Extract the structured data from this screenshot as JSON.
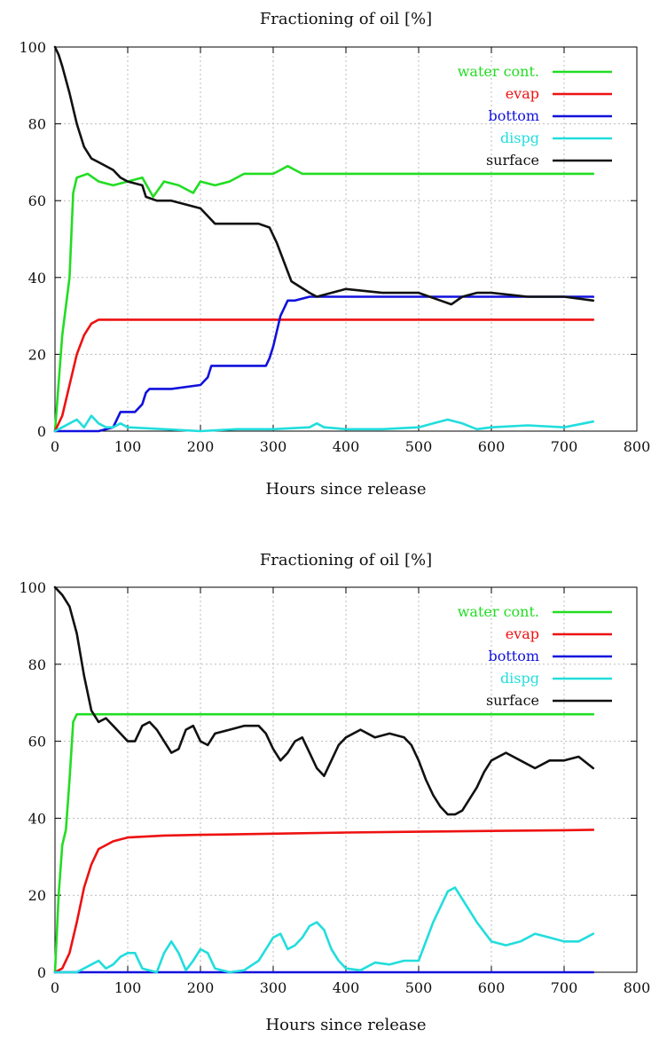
{
  "chart_data": [
    {
      "type": "line",
      "title": "Fractioning of oil [%]",
      "xlabel": "Hours since release",
      "ylabel": "",
      "xlim": [
        0,
        800
      ],
      "ylim": [
        0,
        100
      ],
      "xticks": [
        "0",
        "100",
        "200",
        "300",
        "400",
        "500",
        "600",
        "700",
        "800"
      ],
      "yticks": [
        "0",
        "20",
        "40",
        "60",
        "80",
        "100"
      ],
      "grid": true,
      "legend_position": "top-right",
      "series": [
        {
          "name": "water cont.",
          "color": "#22dd22",
          "x": [
            0,
            10,
            20,
            25,
            30,
            45,
            60,
            80,
            100,
            120,
            135,
            150,
            170,
            190,
            200,
            220,
            240,
            260,
            300,
            310,
            320,
            330,
            340,
            400,
            500,
            600,
            700,
            740
          ],
          "y": [
            0,
            25,
            40,
            62,
            66,
            67,
            65,
            64,
            65,
            66,
            61,
            65,
            64,
            62,
            65,
            64,
            65,
            67,
            67,
            68,
            69,
            68,
            67,
            67,
            67,
            67,
            67,
            67
          ]
        },
        {
          "name": "evap",
          "color": "#ee1111",
          "x": [
            0,
            10,
            20,
            30,
            40,
            50,
            60,
            100,
            200,
            300,
            400,
            500,
            600,
            700,
            740
          ],
          "y": [
            0,
            4,
            12,
            20,
            25,
            28,
            29,
            29,
            29,
            29,
            29,
            29,
            29,
            29,
            29
          ]
        },
        {
          "name": "bottom",
          "color": "#1111dd",
          "x": [
            0,
            60,
            80,
            90,
            100,
            110,
            120,
            125,
            130,
            160,
            200,
            210,
            215,
            250,
            290,
            295,
            300,
            310,
            320,
            330,
            350,
            400,
            500,
            600,
            700,
            740
          ],
          "y": [
            0,
            0,
            1,
            5,
            5,
            5,
            7,
            10,
            11,
            11,
            12,
            14,
            17,
            17,
            17,
            19,
            22,
            30,
            34,
            34,
            35,
            35,
            35,
            35,
            35,
            35
          ]
        },
        {
          "name": "dispg",
          "color": "#22dddd",
          "x": [
            0,
            10,
            20,
            30,
            40,
            50,
            60,
            70,
            80,
            90,
            100,
            150,
            200,
            250,
            300,
            350,
            360,
            370,
            400,
            450,
            500,
            520,
            540,
            560,
            580,
            600,
            650,
            700,
            740
          ],
          "y": [
            0,
            1,
            2,
            3,
            1,
            4,
            2,
            1,
            1,
            2,
            1,
            0.5,
            0,
            0.5,
            0.5,
            1,
            2,
            1,
            0.5,
            0.5,
            1,
            2,
            3,
            2,
            0.5,
            1,
            1.5,
            1,
            2.5
          ]
        },
        {
          "name": "surface",
          "color": "#111111",
          "x": [
            0,
            5,
            10,
            20,
            30,
            40,
            50,
            60,
            80,
            90,
            100,
            120,
            125,
            140,
            160,
            200,
            210,
            220,
            280,
            295,
            305,
            315,
            325,
            350,
            360,
            380,
            400,
            450,
            480,
            500,
            530,
            545,
            560,
            580,
            600,
            650,
            700,
            740
          ],
          "y": [
            100,
            98,
            95,
            88,
            80,
            74,
            71,
            70,
            68,
            66,
            65,
            64,
            61,
            60,
            60,
            58,
            56,
            54,
            54,
            53,
            49,
            44,
            39,
            36,
            35,
            36,
            37,
            36,
            36,
            36,
            34,
            33,
            35,
            36,
            36,
            35,
            35,
            34
          ]
        }
      ]
    },
    {
      "type": "line",
      "title": "Fractioning of oil [%]",
      "xlabel": "Hours since release",
      "ylabel": "",
      "xlim": [
        0,
        800
      ],
      "ylim": [
        0,
        100
      ],
      "xticks": [
        "0",
        "100",
        "200",
        "300",
        "400",
        "500",
        "600",
        "700",
        "800"
      ],
      "yticks": [
        "0",
        "20",
        "40",
        "60",
        "80",
        "100"
      ],
      "grid": true,
      "legend_position": "top-right",
      "series": [
        {
          "name": "water cont.",
          "color": "#22dd22",
          "x": [
            0,
            5,
            10,
            15,
            20,
            25,
            30,
            100,
            200,
            300,
            400,
            500,
            600,
            700,
            740
          ],
          "y": [
            0,
            20,
            33,
            37,
            50,
            65,
            67,
            67,
            67,
            67,
            67,
            67,
            67,
            67,
            67
          ]
        },
        {
          "name": "evap",
          "color": "#ee1111",
          "x": [
            0,
            10,
            20,
            30,
            40,
            50,
            60,
            80,
            100,
            150,
            200,
            300,
            400,
            500,
            600,
            700,
            740
          ],
          "y": [
            0,
            1,
            5,
            13,
            22,
            28,
            32,
            34,
            35,
            35.5,
            35.7,
            36,
            36.3,
            36.5,
            36.7,
            36.9,
            37
          ]
        },
        {
          "name": "bottom",
          "color": "#1111dd",
          "x": [
            0,
            100,
            200,
            300,
            400,
            500,
            600,
            700,
            740
          ],
          "y": [
            0,
            0,
            0,
            0,
            0,
            0,
            0,
            0,
            0
          ]
        },
        {
          "name": "dispg",
          "color": "#22dddd",
          "x": [
            0,
            30,
            50,
            60,
            70,
            80,
            90,
            100,
            110,
            120,
            140,
            150,
            160,
            170,
            180,
            190,
            200,
            210,
            220,
            240,
            260,
            280,
            300,
            310,
            320,
            330,
            340,
            350,
            360,
            370,
            380,
            390,
            400,
            420,
            440,
            460,
            480,
            500,
            520,
            540,
            550,
            560,
            580,
            600,
            620,
            640,
            660,
            680,
            700,
            720,
            740
          ],
          "y": [
            0,
            0,
            2,
            3,
            1,
            2,
            4,
            5,
            5,
            1,
            0,
            5,
            8,
            5,
            0.5,
            3,
            6,
            5,
            1,
            0,
            0.5,
            3,
            9,
            10,
            6,
            7,
            9,
            12,
            13,
            11,
            6,
            3,
            1,
            0.5,
            2.5,
            2,
            3,
            3,
            13,
            21,
            22,
            19,
            13,
            8,
            7,
            8,
            10,
            9,
            8,
            8,
            10
          ]
        },
        {
          "name": "surface",
          "color": "#111111",
          "x": [
            0,
            10,
            20,
            30,
            40,
            50,
            60,
            70,
            80,
            90,
            100,
            110,
            120,
            130,
            140,
            150,
            160,
            170,
            180,
            190,
            200,
            210,
            220,
            240,
            260,
            280,
            290,
            300,
            310,
            320,
            330,
            340,
            350,
            360,
            370,
            380,
            390,
            400,
            420,
            440,
            460,
            480,
            490,
            500,
            510,
            520,
            530,
            540,
            550,
            560,
            570,
            580,
            590,
            600,
            620,
            640,
            660,
            680,
            700,
            720,
            740
          ],
          "y": [
            100,
            98,
            95,
            88,
            77,
            68,
            65,
            66,
            64,
            62,
            60,
            60,
            64,
            65,
            63,
            60,
            57,
            58,
            63,
            64,
            60,
            59,
            62,
            63,
            64,
            64,
            62,
            58,
            55,
            57,
            60,
            61,
            57,
            53,
            51,
            55,
            59,
            61,
            63,
            61,
            62,
            61,
            59,
            55,
            50,
            46,
            43,
            41,
            41,
            42,
            45,
            48,
            52,
            55,
            57,
            55,
            53,
            55,
            55,
            56,
            53
          ]
        }
      ]
    }
  ]
}
